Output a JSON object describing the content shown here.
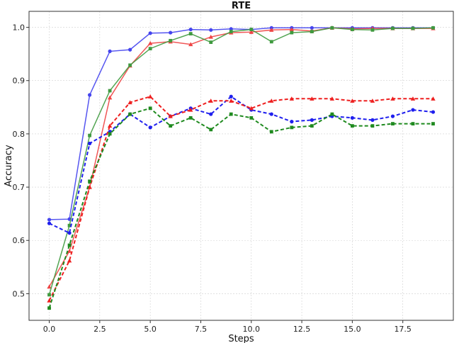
{
  "chart_data": {
    "type": "line",
    "title": "RTE",
    "xlabel": "Steps",
    "ylabel": "Accuracy",
    "xlim": [
      -1.0,
      20.0
    ],
    "ylim": [
      0.45,
      1.03
    ],
    "xticks": [
      0.0,
      2.5,
      5.0,
      7.5,
      10.0,
      12.5,
      15.0,
      17.5
    ],
    "xtick_labels": [
      "0.0",
      "2.5",
      "5.0",
      "7.5",
      "10.0",
      "12.5",
      "15.0",
      "17.5"
    ],
    "yticks": [
      0.5,
      0.6,
      0.7,
      0.8,
      0.9,
      1.0
    ],
    "ytick_labels": [
      "0.5",
      "0.6",
      "0.7",
      "0.8",
      "0.9",
      "1.0"
    ],
    "grid": true,
    "x": [
      0,
      1,
      2,
      3,
      4,
      5,
      6,
      7,
      8,
      9,
      10,
      11,
      12,
      13,
      14,
      15,
      16,
      17,
      18,
      19
    ],
    "series": [
      {
        "color": "#4444ee",
        "style": "solid",
        "marker": "circle",
        "values": [
          0.639,
          0.64,
          0.873,
          0.955,
          0.958,
          0.989,
          0.99,
          0.996,
          0.995,
          0.997,
          0.996,
          0.999,
          0.999,
          0.999,
          0.999,
          0.999,
          0.999,
          0.999,
          0.999,
          0.999
        ]
      },
      {
        "color": "#ee4444",
        "style": "solid",
        "marker": "triangle",
        "values": [
          0.513,
          0.58,
          0.7,
          0.868,
          0.928,
          0.97,
          0.973,
          0.968,
          0.982,
          0.99,
          0.991,
          0.995,
          0.996,
          0.993,
          0.999,
          0.997,
          0.998,
          0.998,
          0.998,
          0.998
        ]
      },
      {
        "color": "#3f9a3f",
        "style": "solid",
        "marker": "square",
        "values": [
          0.498,
          0.628,
          0.797,
          0.881,
          0.929,
          0.96,
          0.975,
          0.988,
          0.972,
          0.992,
          0.996,
          0.973,
          0.99,
          0.992,
          0.999,
          0.996,
          0.995,
          0.998,
          0.998,
          0.999
        ]
      },
      {
        "color": "#1f1fee",
        "style": "dashed",
        "marker": "circle",
        "values": [
          0.632,
          0.614,
          0.782,
          0.804,
          0.837,
          0.812,
          0.833,
          0.848,
          0.837,
          0.87,
          0.845,
          0.837,
          0.823,
          0.826,
          0.833,
          0.83,
          0.826,
          0.833,
          0.845,
          0.841
        ]
      },
      {
        "color": "#ee2020",
        "style": "dashed",
        "marker": "triangle",
        "values": [
          0.487,
          0.562,
          0.7,
          0.815,
          0.859,
          0.87,
          0.833,
          0.845,
          0.862,
          0.862,
          0.848,
          0.862,
          0.866,
          0.866,
          0.866,
          0.862,
          0.862,
          0.866,
          0.866,
          0.866
        ]
      },
      {
        "color": "#1f8a1f",
        "style": "dashed",
        "marker": "square",
        "values": [
          0.473,
          0.591,
          0.711,
          0.8,
          0.837,
          0.848,
          0.815,
          0.83,
          0.808,
          0.837,
          0.83,
          0.804,
          0.812,
          0.815,
          0.837,
          0.815,
          0.815,
          0.819,
          0.819,
          0.819
        ]
      }
    ]
  }
}
